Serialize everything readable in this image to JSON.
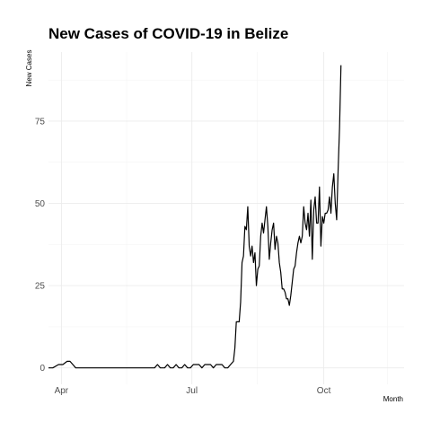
{
  "chart_data": {
    "type": "line",
    "title": "New Cases of COVID-19 in Belize",
    "xlabel": "Month",
    "ylabel": "New Cases",
    "x_ticks": [
      "Apr",
      "Jul",
      "Oct"
    ],
    "y_ticks": [
      0,
      25,
      50,
      75
    ],
    "xlim": [
      "2020-03-23",
      "2020-11-26"
    ],
    "ylim": [
      -5,
      96
    ],
    "grid": true,
    "legend": "none",
    "series": [
      {
        "points": [
          [
            "2020-03-23",
            0
          ],
          [
            "2020-03-26",
            0
          ],
          [
            "2020-03-30",
            1
          ],
          [
            "2020-04-02",
            1
          ],
          [
            "2020-04-05",
            2
          ],
          [
            "2020-04-07",
            2
          ],
          [
            "2020-04-09",
            1
          ],
          [
            "2020-04-11",
            0
          ],
          [
            "2020-04-20",
            0
          ],
          [
            "2020-05-01",
            0
          ],
          [
            "2020-05-15",
            0
          ],
          [
            "2020-06-01",
            0
          ],
          [
            "2020-06-05",
            0
          ],
          [
            "2020-06-07",
            1
          ],
          [
            "2020-06-09",
            0
          ],
          [
            "2020-06-12",
            0
          ],
          [
            "2020-06-14",
            1
          ],
          [
            "2020-06-16",
            0
          ],
          [
            "2020-06-18",
            0
          ],
          [
            "2020-06-20",
            1
          ],
          [
            "2020-06-22",
            0
          ],
          [
            "2020-06-24",
            0
          ],
          [
            "2020-06-26",
            1
          ],
          [
            "2020-06-28",
            0
          ],
          [
            "2020-06-30",
            0
          ],
          [
            "2020-07-02",
            1
          ],
          [
            "2020-07-04",
            1
          ],
          [
            "2020-07-06",
            1
          ],
          [
            "2020-07-08",
            0
          ],
          [
            "2020-07-10",
            1
          ],
          [
            "2020-07-12",
            1
          ],
          [
            "2020-07-14",
            1
          ],
          [
            "2020-07-16",
            0
          ],
          [
            "2020-07-18",
            1
          ],
          [
            "2020-07-20",
            1
          ],
          [
            "2020-07-22",
            1
          ],
          [
            "2020-07-24",
            0
          ],
          [
            "2020-07-26",
            0
          ],
          [
            "2020-07-28",
            1
          ],
          [
            "2020-07-30",
            2
          ],
          [
            "2020-07-31",
            6
          ],
          [
            "2020-08-01",
            14
          ],
          [
            "2020-08-03",
            14
          ],
          [
            "2020-08-04",
            20
          ],
          [
            "2020-08-05",
            32
          ],
          [
            "2020-08-06",
            34
          ],
          [
            "2020-08-07",
            43
          ],
          [
            "2020-08-08",
            42
          ],
          [
            "2020-08-09",
            49
          ],
          [
            "2020-08-10",
            37
          ],
          [
            "2020-08-11",
            34
          ],
          [
            "2020-08-12",
            37
          ],
          [
            "2020-08-13",
            32
          ],
          [
            "2020-08-14",
            35
          ],
          [
            "2020-08-15",
            25
          ],
          [
            "2020-08-16",
            30
          ],
          [
            "2020-08-17",
            31
          ],
          [
            "2020-08-18",
            40
          ],
          [
            "2020-08-19",
            44
          ],
          [
            "2020-08-20",
            41
          ],
          [
            "2020-08-21",
            45
          ],
          [
            "2020-08-22",
            49
          ],
          [
            "2020-08-23",
            43
          ],
          [
            "2020-08-24",
            33
          ],
          [
            "2020-08-25",
            38
          ],
          [
            "2020-08-26",
            42
          ],
          [
            "2020-08-27",
            44
          ],
          [
            "2020-08-28",
            36
          ],
          [
            "2020-08-29",
            40
          ],
          [
            "2020-08-30",
            38
          ],
          [
            "2020-08-31",
            32
          ],
          [
            "2020-09-01",
            29
          ],
          [
            "2020-09-02",
            24
          ],
          [
            "2020-09-03",
            24
          ],
          [
            "2020-09-04",
            23
          ],
          [
            "2020-09-05",
            21
          ],
          [
            "2020-09-06",
            21
          ],
          [
            "2020-09-07",
            19
          ],
          [
            "2020-09-08",
            22
          ],
          [
            "2020-09-09",
            26
          ],
          [
            "2020-09-10",
            30
          ],
          [
            "2020-09-11",
            31
          ],
          [
            "2020-09-12",
            35
          ],
          [
            "2020-09-13",
            38
          ],
          [
            "2020-09-14",
            40
          ],
          [
            "2020-09-15",
            38
          ],
          [
            "2020-09-16",
            40
          ],
          [
            "2020-09-17",
            49
          ],
          [
            "2020-09-18",
            44
          ],
          [
            "2020-09-19",
            42
          ],
          [
            "2020-09-20",
            47
          ],
          [
            "2020-09-21",
            40
          ],
          [
            "2020-09-22",
            51
          ],
          [
            "2020-09-23",
            33
          ],
          [
            "2020-09-24",
            48
          ],
          [
            "2020-09-25",
            52
          ],
          [
            "2020-09-26",
            44
          ],
          [
            "2020-09-27",
            44
          ],
          [
            "2020-09-28",
            55
          ],
          [
            "2020-09-29",
            37
          ],
          [
            "2020-09-30",
            46
          ],
          [
            "2020-10-01",
            44
          ],
          [
            "2020-10-02",
            47
          ],
          [
            "2020-10-03",
            47
          ],
          [
            "2020-10-04",
            48
          ],
          [
            "2020-10-05",
            52
          ],
          [
            "2020-10-06",
            47
          ],
          [
            "2020-10-07",
            55
          ],
          [
            "2020-10-08",
            59
          ],
          [
            "2020-10-09",
            50
          ],
          [
            "2020-10-10",
            45
          ],
          [
            "2020-10-11",
            60
          ],
          [
            "2020-10-12",
            73
          ],
          [
            "2020-10-13",
            92
          ]
        ]
      }
    ]
  }
}
